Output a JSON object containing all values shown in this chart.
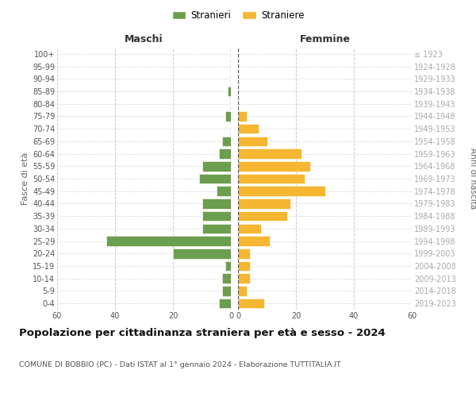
{
  "age_groups": [
    "0-4",
    "5-9",
    "10-14",
    "15-19",
    "20-24",
    "25-29",
    "30-34",
    "35-39",
    "40-44",
    "45-49",
    "50-54",
    "55-59",
    "60-64",
    "65-69",
    "70-74",
    "75-79",
    "80-84",
    "85-89",
    "90-94",
    "95-99",
    "100+"
  ],
  "birth_years": [
    "2019-2023",
    "2014-2018",
    "2009-2013",
    "2004-2008",
    "1999-2003",
    "1994-1998",
    "1989-1993",
    "1984-1988",
    "1979-1983",
    "1974-1978",
    "1969-1973",
    "1964-1968",
    "1959-1963",
    "1954-1958",
    "1949-1953",
    "1944-1948",
    "1939-1943",
    "1934-1938",
    "1929-1933",
    "1924-1928",
    "≤ 1923"
  ],
  "males": [
    4,
    3,
    3,
    2,
    20,
    43,
    10,
    10,
    10,
    5,
    11,
    10,
    4,
    3,
    0,
    2,
    0,
    1,
    0,
    0,
    0
  ],
  "females": [
    9,
    3,
    4,
    4,
    4,
    11,
    8,
    17,
    18,
    30,
    23,
    25,
    22,
    10,
    7,
    3,
    0,
    0,
    0,
    0,
    0
  ],
  "male_color": "#6b9e4e",
  "female_color": "#f5b731",
  "grid_color": "#cccccc",
  "centerline_color": "#555555",
  "title": "Popolazione per cittadinanza straniera per età e sesso - 2024",
  "subtitle": "COMUNE DI BOBBIO (PC) - Dati ISTAT al 1° gennaio 2024 - Elaborazione TUTTITALIA.IT",
  "xlabel_left": "Maschi",
  "xlabel_right": "Femmine",
  "ylabel_left": "Fasce di età",
  "ylabel_right": "Anni di nascita",
  "legend_stranieri": "Stranieri",
  "legend_straniere": "Straniere",
  "xlim": 60,
  "background_color": "#ffffff"
}
